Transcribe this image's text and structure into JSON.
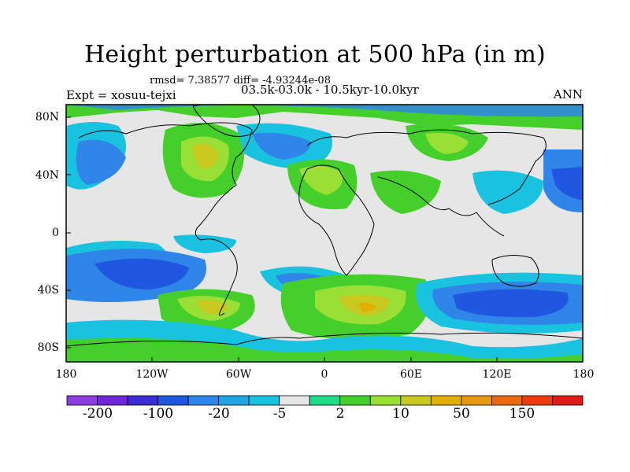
{
  "title": "Height perturbation at 500 hPa (in m)",
  "stats_line": "rmsd= 7.38577 diff= -4.93244e-08",
  "expt_line": "Expt = xosuu-tejxi",
  "period_line": "03.5k-03.0k - 10.5kyr-10.0kyr",
  "season": "ANN",
  "axes": {
    "lat_ticks": [
      "80N",
      "40N",
      "0",
      "40S",
      "80S"
    ],
    "lon_ticks": [
      "180",
      "120W",
      "60W",
      "0",
      "60E",
      "120E",
      "180"
    ]
  },
  "colorbar": {
    "labels": [
      "-200",
      "-100",
      "-20",
      "-5",
      "2",
      "10",
      "50",
      "150"
    ],
    "colors": [
      "#8a3ee0",
      "#6e26d8",
      "#3a2bd6",
      "#1f57e0",
      "#2f86e8",
      "#1fa6e0",
      "#19c3df",
      "#e6e6e6",
      "#1fdc8a",
      "#44cf2a",
      "#9adf36",
      "#c8c81e",
      "#e0b000",
      "#e59a10",
      "#ea6a10",
      "#f03a10",
      "#e01a18"
    ]
  },
  "palette": {
    "ocean_neutral": "#e6e6e6",
    "teal": "#19c3df",
    "light_blue": "#2f86e8",
    "blue": "#1f57e0",
    "green": "#44cf2a",
    "mint": "#1fdc8a",
    "lime": "#9adf36",
    "olive": "#c8c81e",
    "amber": "#e0b000",
    "coast": "#000000"
  }
}
